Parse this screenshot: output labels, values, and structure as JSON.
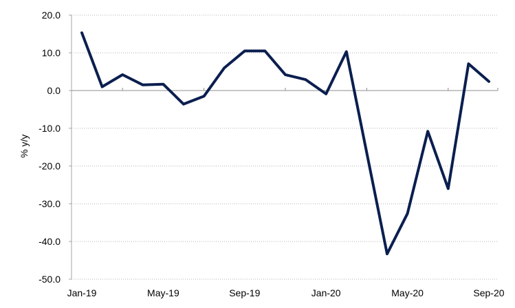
{
  "chart_data": {
    "type": "line",
    "title": "",
    "xlabel": "",
    "ylabel": "% y/y",
    "ylim": [
      -50,
      20
    ],
    "yticks": [
      "20.0",
      "10.0",
      "0.0",
      "-10.0",
      "-20.0",
      "-30.0",
      "-40.0",
      "-50.0"
    ],
    "ytick_values": [
      20,
      10,
      0,
      -10,
      -20,
      -30,
      -40,
      -50
    ],
    "x": [
      "Jan-19",
      "Feb-19",
      "Mar-19",
      "Apr-19",
      "May-19",
      "Jun-19",
      "Jul-19",
      "Aug-19",
      "Sep-19",
      "Oct-19",
      "Nov-19",
      "Dec-19",
      "Jan-20",
      "Feb-20",
      "Mar-20",
      "Apr-20",
      "May-20",
      "Jun-20",
      "Jul-20",
      "Aug-20",
      "Sep-20"
    ],
    "xtick_labels": [
      "Jan-19",
      "May-19",
      "Sep-19",
      "Jan-20",
      "May-20",
      "Sep-20"
    ],
    "xtick_indices": [
      0,
      4,
      8,
      12,
      16,
      20
    ],
    "grid": true,
    "legend": "none",
    "series": [
      {
        "values": [
          15.3,
          1.0,
          4.2,
          1.5,
          1.7,
          -3.6,
          -1.5,
          6.0,
          10.5,
          10.5,
          4.2,
          2.9,
          -0.9,
          10.3,
          -16.5,
          -43.3,
          -32.6,
          -10.8,
          -26.0,
          7.1,
          2.4
        ],
        "color": "#0b1f4f"
      }
    ]
  }
}
